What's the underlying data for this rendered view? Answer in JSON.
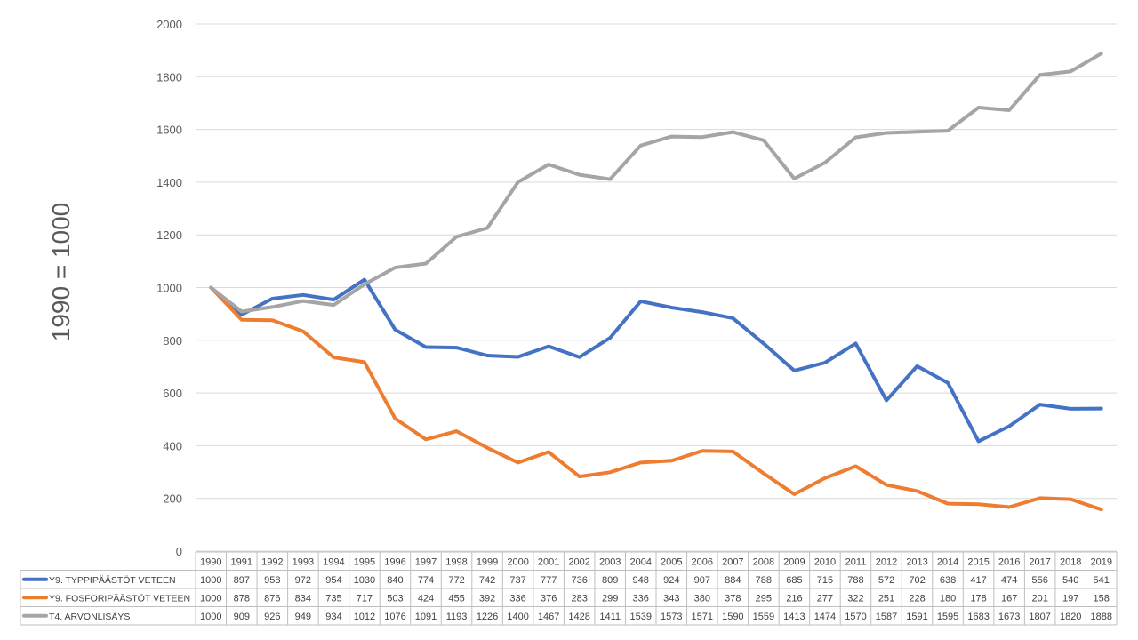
{
  "chart_data": {
    "type": "line",
    "ylabel": "1990 = 1000",
    "ylim": [
      0,
      2000
    ],
    "yticks": [
      0,
      200,
      400,
      600,
      800,
      1000,
      1200,
      1400,
      1600,
      1800,
      2000
    ],
    "grid": true,
    "legend": "data-table-below",
    "categories": [
      "1990",
      "1991",
      "1992",
      "1993",
      "1994",
      "1995",
      "1996",
      "1997",
      "1998",
      "1999",
      "2000",
      "2001",
      "2002",
      "2003",
      "2004",
      "2005",
      "2006",
      "2007",
      "2008",
      "2009",
      "2010",
      "2011",
      "2012",
      "2013",
      "2014",
      "2015",
      "2016",
      "2017",
      "2018",
      "2019"
    ],
    "series": [
      {
        "name": "Y9. TYPPIPÄÄSTÖT VETEEN",
        "color": "#4472C4",
        "values": [
          1000,
          897,
          958,
          972,
          954,
          1030,
          840,
          774,
          772,
          742,
          737,
          777,
          736,
          809,
          948,
          924,
          907,
          884,
          788,
          685,
          715,
          788,
          572,
          702,
          638,
          417,
          474,
          556,
          540,
          541
        ]
      },
      {
        "name": "Y9. FOSFORIPÄÄSTÖT VETEEN",
        "color": "#ED7D31",
        "values": [
          1000,
          878,
          876,
          834,
          735,
          717,
          503,
          424,
          455,
          392,
          336,
          376,
          283,
          299,
          336,
          343,
          380,
          378,
          295,
          216,
          277,
          322,
          251,
          228,
          180,
          178,
          167,
          201,
          197,
          158
        ]
      },
      {
        "name": "T4. ARVONLISÄYS",
        "color": "#A5A5A5",
        "values": [
          1000,
          909,
          926,
          949,
          934,
          1012,
          1076,
          1091,
          1193,
          1226,
          1400,
          1467,
          1428,
          1411,
          1539,
          1573,
          1571,
          1590,
          1559,
          1413,
          1474,
          1570,
          1587,
          1591,
          1595,
          1683,
          1673,
          1807,
          1820,
          1888
        ]
      }
    ]
  }
}
